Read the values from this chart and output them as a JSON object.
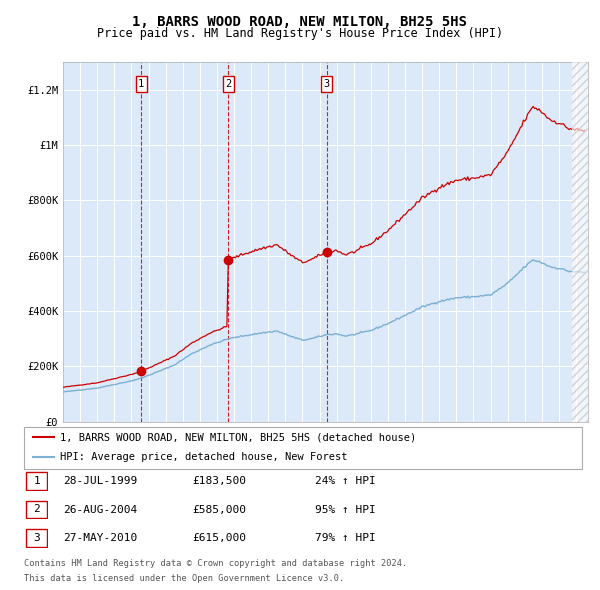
{
  "title": "1, BARRS WOOD ROAD, NEW MILTON, BH25 5HS",
  "subtitle": "Price paid vs. HM Land Registry's House Price Index (HPI)",
  "legend_red": "1, BARRS WOOD ROAD, NEW MILTON, BH25 5HS (detached house)",
  "legend_blue": "HPI: Average price, detached house, New Forest",
  "table_row1": [
    "1",
    "28-JUL-1999",
    "£183,500",
    "24% ↑ HPI"
  ],
  "table_row2": [
    "2",
    "26-AUG-2004",
    "£585,000",
    "95% ↑ HPI"
  ],
  "table_row3": [
    "3",
    "27-MAY-2010",
    "£615,000",
    "79% ↑ HPI"
  ],
  "footer1": "Contains HM Land Registry data © Crown copyright and database right 2024.",
  "footer2": "This data is licensed under the Open Government Licence v3.0.",
  "bg_color": "#dce9f8",
  "red_color": "#cc0000",
  "blue_color": "#7bafd4",
  "sale_times": [
    1999.58,
    2004.67,
    2010.42
  ],
  "sale_prices": [
    183500,
    585000,
    615000
  ],
  "ylim": [
    0,
    1300000
  ],
  "xlim_start": 1995.0,
  "xlim_end": 2025.7
}
